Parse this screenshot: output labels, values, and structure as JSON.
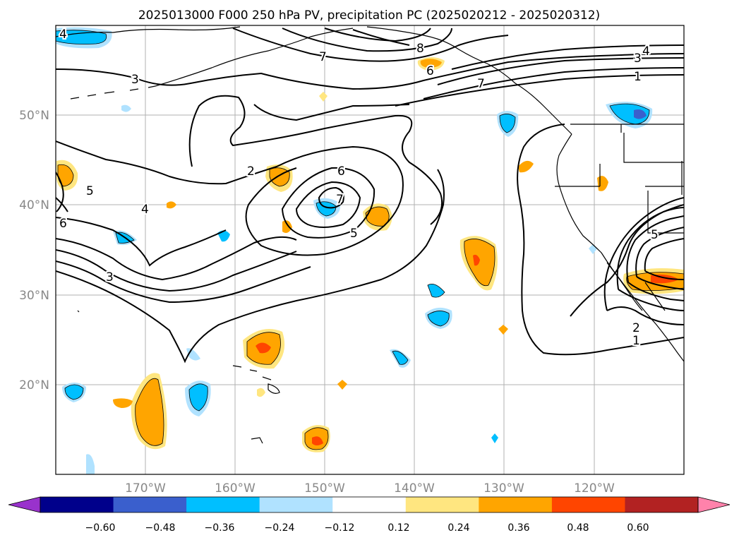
{
  "title": "2025013000 F000 250 hPa PV, precipitation PC (2025020212 - 2025020312)",
  "lat_labels": [
    "50°N",
    "40°N",
    "30°N",
    "20°N"
  ],
  "lon_labels": [
    "170°W",
    "160°W",
    "150°W",
    "140°W",
    "130°W",
    "120°W"
  ],
  "map_extent": {
    "lon_min": -180,
    "lon_max": -110,
    "lat_min": 10,
    "lat_max": 60
  },
  "colorbar": {
    "ticks": [
      "−0.60",
      "−0.48",
      "−0.36",
      "−0.24",
      "−0.12",
      "0.12",
      "0.24",
      "0.36",
      "0.48",
      "0.60"
    ],
    "colors": [
      "#9932cc",
      "#00008b",
      "#3a5fcd",
      "#00bfff",
      "#b0e2ff",
      "#ffffff",
      "#ffe680",
      "#ffa500",
      "#ff4500",
      "#b22222",
      "#ff82ab"
    ]
  },
  "contour_labels": [
    "4",
    "7",
    "8",
    "3",
    "4",
    "6",
    "1",
    "3",
    "2",
    "6",
    "7",
    "5",
    "5",
    "4",
    "6",
    "3",
    "7",
    "5",
    "2",
    "1"
  ],
  "colors": {
    "pos_light": "#ffe680",
    "pos_mid": "#ffa500",
    "pos_high": "#ff4500",
    "neg_light": "#b0e2ff",
    "neg_mid": "#00bfff",
    "neg_high": "#3a5fcd"
  }
}
